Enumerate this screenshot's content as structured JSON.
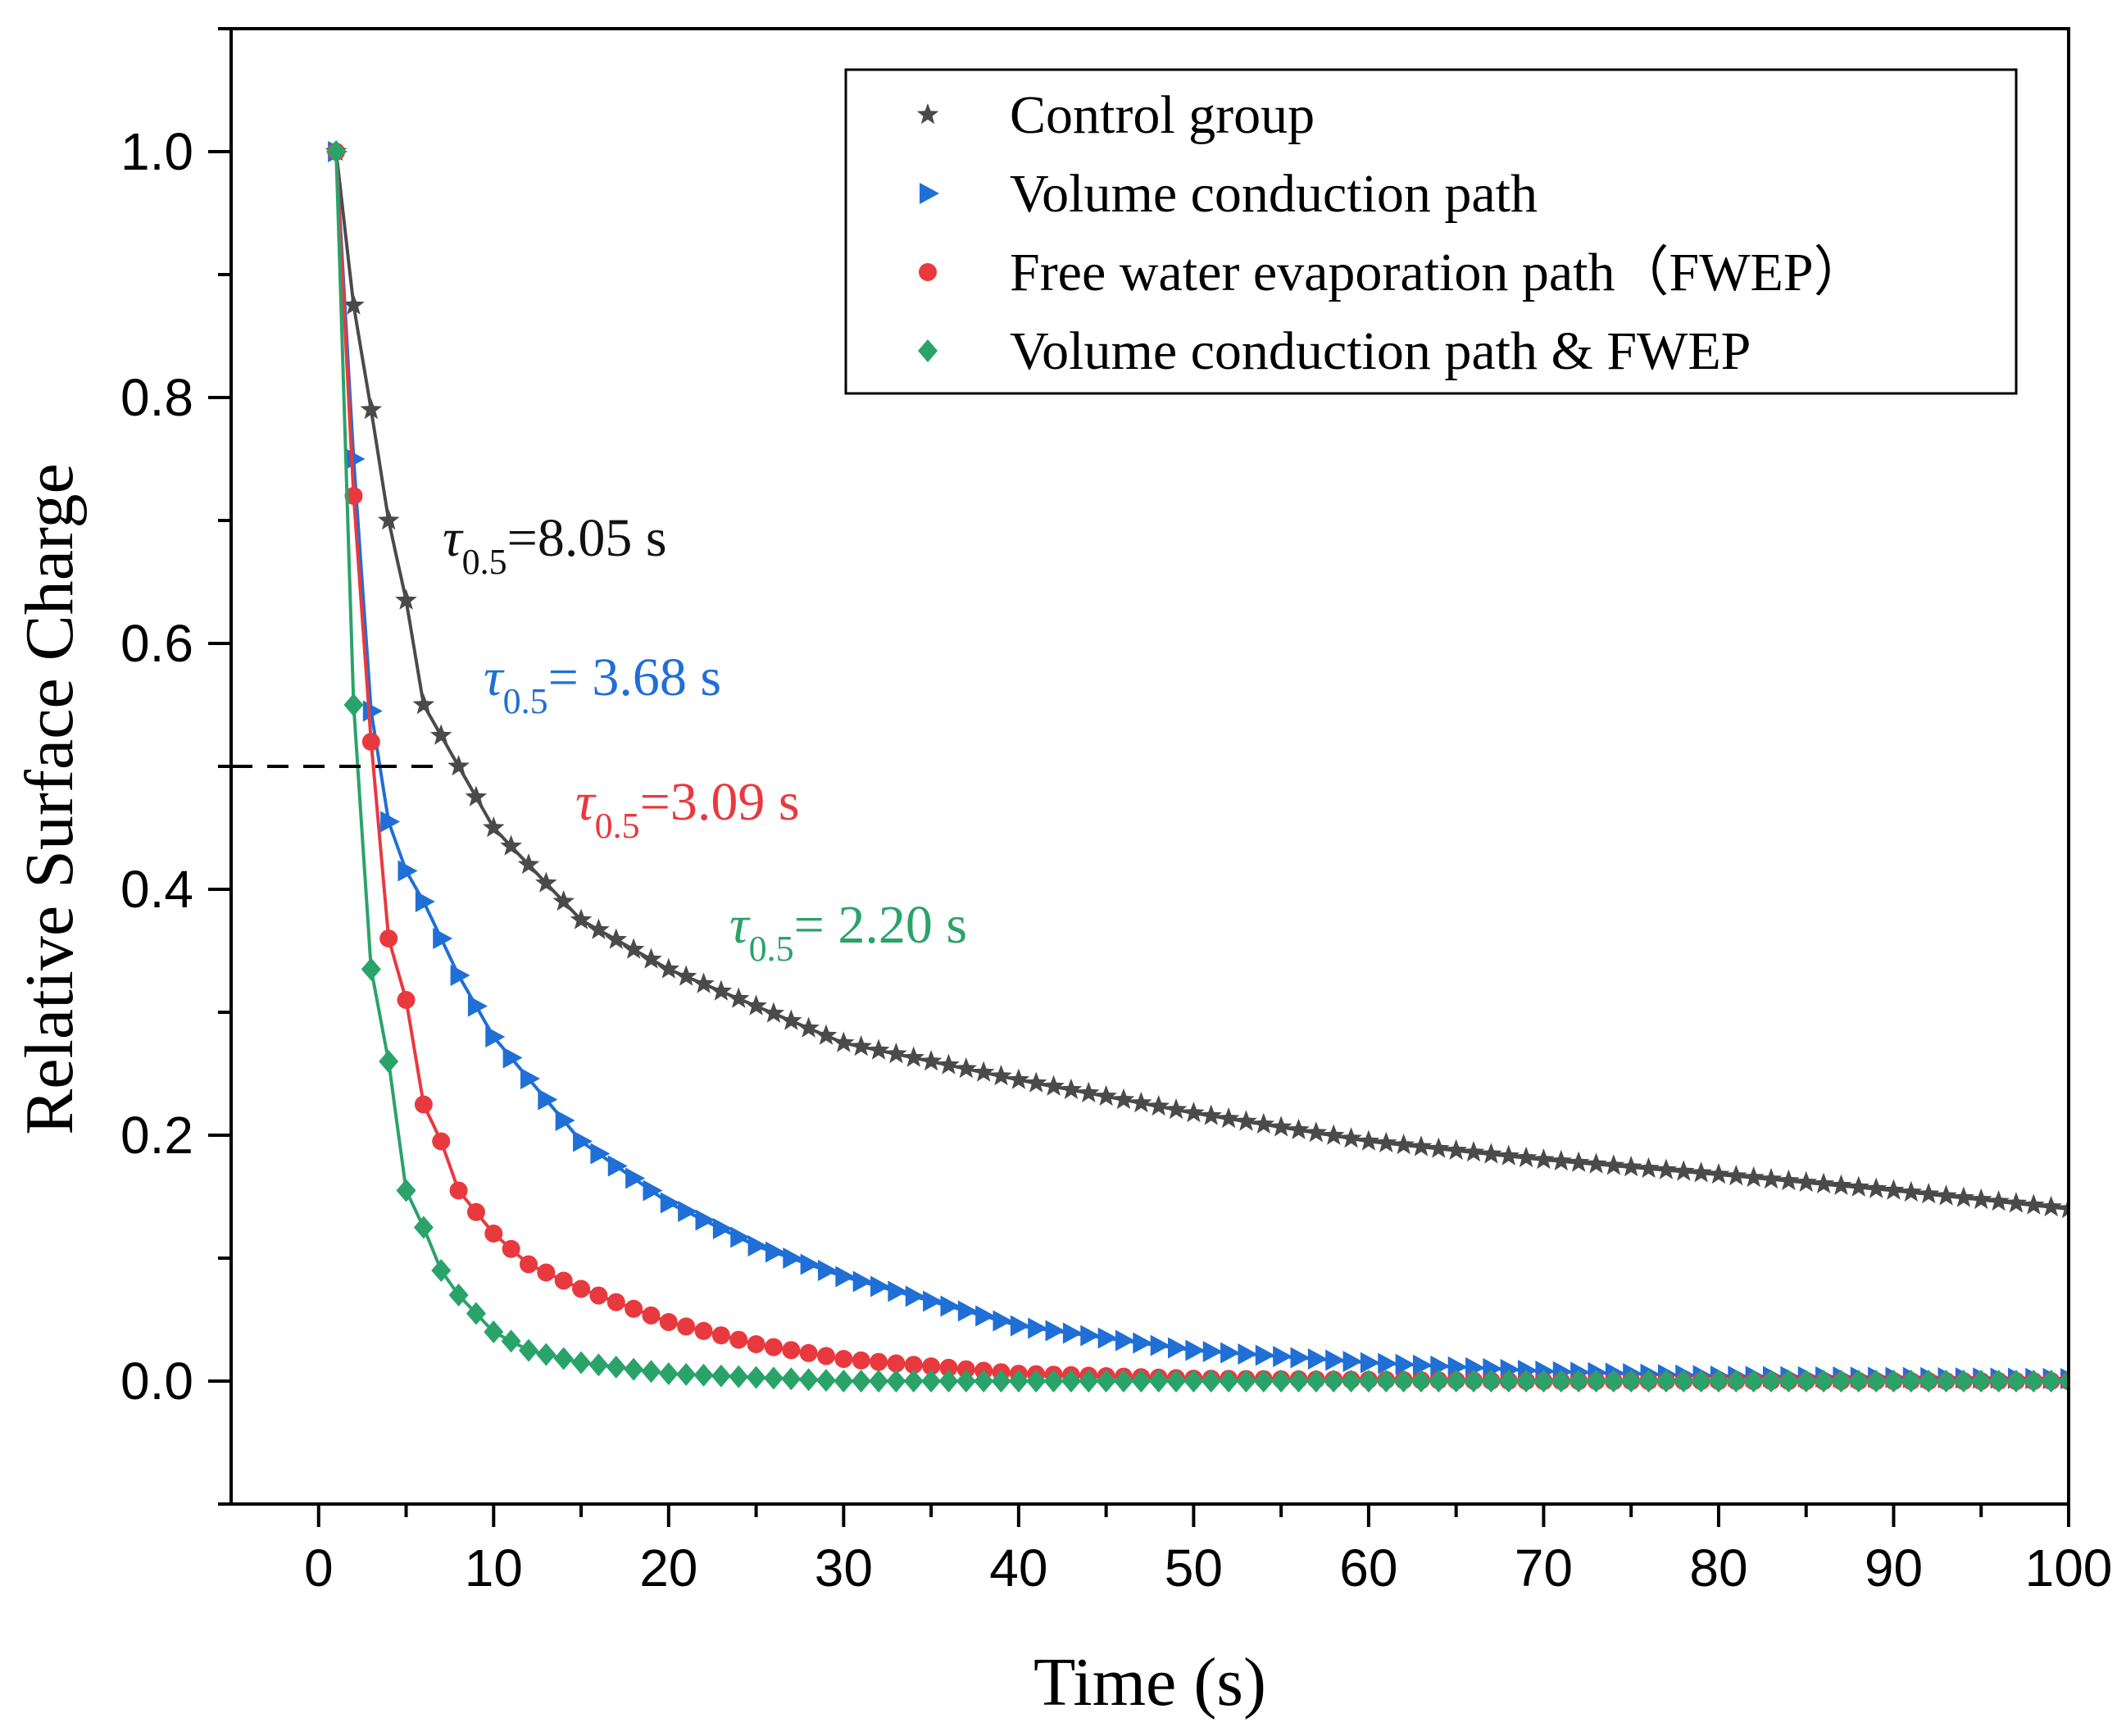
{
  "chart_data": {
    "type": "scatter",
    "title": "",
    "xlabel": "Time (s)",
    "ylabel": "Relative Surface Charge",
    "xlim": [
      -5,
      100
    ],
    "ylim": [
      -0.1,
      1.1
    ],
    "xticks": [
      "0",
      "10",
      "20",
      "30",
      "40",
      "50",
      "60",
      "70",
      "80",
      "90",
      "100"
    ],
    "yticks": [
      "0.0",
      "0.2",
      "0.4",
      "0.6",
      "0.8",
      "1.0"
    ],
    "grid": false,
    "legend_position": "top-right",
    "reference_line": {
      "y": 0.5,
      "x_from": -5,
      "x_to": 7,
      "style": "dashed"
    },
    "sampling": {
      "x_start": 1,
      "x_end": 100,
      "x_step": 1
    },
    "series": [
      {
        "name": "Control group",
        "color": "#4a4a4a",
        "marker": "star",
        "tau_label": "=8.05 s",
        "anchor_x": [
          1,
          2,
          3,
          4,
          5,
          6,
          8,
          10,
          15,
          20,
          30,
          40,
          50,
          60,
          70,
          80,
          90,
          100
        ],
        "anchor_y": [
          1.0,
          0.875,
          0.79,
          0.7,
          0.635,
          0.55,
          0.5,
          0.45,
          0.375,
          0.335,
          0.275,
          0.245,
          0.218,
          0.195,
          0.18,
          0.168,
          0.155,
          0.14
        ]
      },
      {
        "name": "Volume conduction path",
        "color": "#1f6fd6",
        "marker": "triangle-right",
        "tau_label": "= 3.68 s",
        "anchor_x": [
          1,
          2,
          3,
          4,
          5,
          6,
          8,
          10,
          15,
          20,
          25,
          30,
          40,
          50,
          60,
          70,
          80,
          90,
          100
        ],
        "anchor_y": [
          1.0,
          0.75,
          0.545,
          0.455,
          0.415,
          0.39,
          0.33,
          0.28,
          0.195,
          0.145,
          0.11,
          0.085,
          0.045,
          0.025,
          0.015,
          0.008,
          0.004,
          0.003,
          0.002
        ]
      },
      {
        "name": "Free water evaporation path（FWEP）",
        "color": "#e8393f",
        "marker": "circle",
        "tau_label": "=3.09 s",
        "anchor_x": [
          1,
          2,
          3,
          4,
          5,
          6,
          7,
          8,
          10,
          12,
          15,
          20,
          25,
          30,
          40,
          50,
          60,
          70,
          80,
          90,
          100
        ],
        "anchor_y": [
          1.0,
          0.72,
          0.52,
          0.36,
          0.31,
          0.225,
          0.195,
          0.155,
          0.12,
          0.095,
          0.075,
          0.048,
          0.03,
          0.018,
          0.006,
          0.002,
          0.001,
          0.0,
          0.0,
          0.0,
          0.0
        ]
      },
      {
        "name": "Volume conduction path & FWEP",
        "color": "#2aa36a",
        "marker": "diamond",
        "tau_label": "= 2.20 s",
        "anchor_x": [
          1,
          2,
          3,
          4,
          5,
          6,
          7,
          8,
          10,
          12,
          15,
          20,
          30,
          40,
          50,
          60,
          70,
          80,
          90,
          100
        ],
        "anchor_y": [
          1.0,
          0.55,
          0.335,
          0.26,
          0.155,
          0.125,
          0.09,
          0.07,
          0.04,
          0.025,
          0.015,
          0.006,
          0.0,
          0.0,
          0.0,
          0.0,
          0.0,
          0.0,
          0.0,
          0.0
        ]
      }
    ],
    "annotations": [
      {
        "series": 0,
        "symbol": "τ",
        "subscript": "0.5",
        "text": "=8.05 s"
      },
      {
        "series": 1,
        "symbol": "τ",
        "subscript": "0.5",
        "text": "= 3.68 s"
      },
      {
        "series": 2,
        "symbol": "τ",
        "subscript": "0.5",
        "text": "=3.09 s"
      },
      {
        "series": 3,
        "symbol": "τ",
        "subscript": "0.5",
        "text": "= 2.20 s"
      }
    ]
  }
}
